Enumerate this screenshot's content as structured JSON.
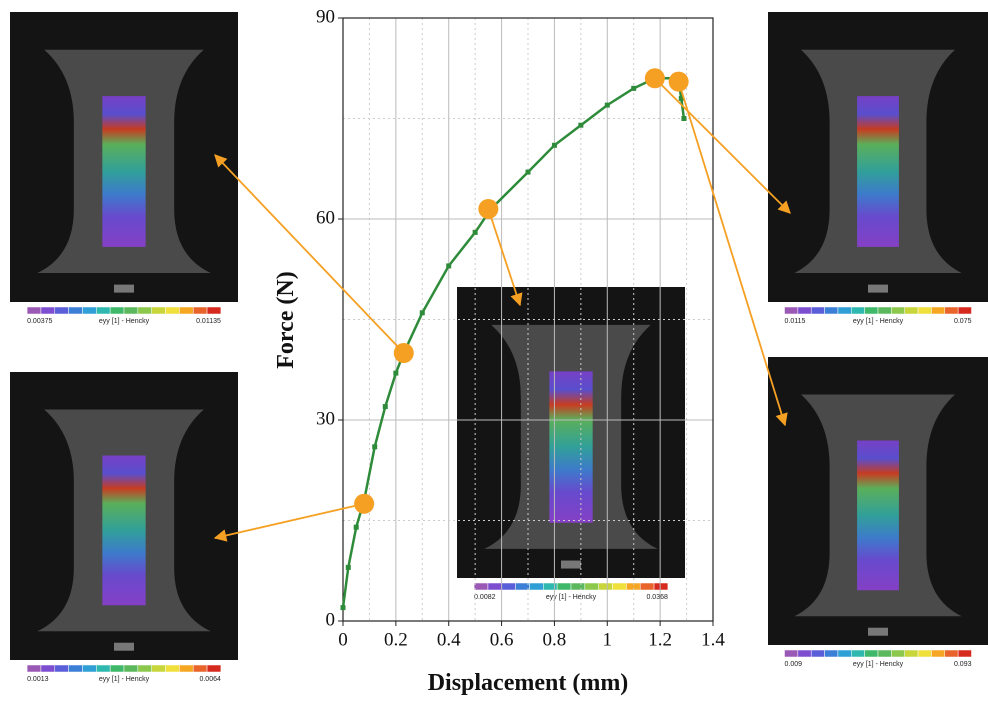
{
  "chart_data": {
    "type": "line",
    "xlabel": "Displacement (mm)",
    "ylabel": "Force (N)",
    "x": [
      0,
      0.02,
      0.05,
      0.08,
      0.12,
      0.16,
      0.2,
      0.23,
      0.3,
      0.4,
      0.5,
      0.56,
      0.7,
      0.8,
      0.9,
      1.0,
      1.1,
      1.18,
      1.25,
      1.27,
      1.28,
      1.29
    ],
    "series": [
      {
        "color": "#2e8b3a",
        "values": [
          2,
          8,
          14,
          18,
          26,
          32,
          37,
          40,
          46,
          53,
          58,
          61.5,
          67,
          71,
          74,
          77,
          79.5,
          81,
          81,
          80.5,
          78,
          75
        ]
      }
    ],
    "markers": {
      "color": "#f5a023",
      "x": [
        0.08,
        0.23,
        0.55,
        1.18,
        1.27
      ],
      "values": [
        17.5,
        40,
        61.5,
        81,
        80.5
      ]
    },
    "xlim": [
      0,
      1.4
    ],
    "xticks": [
      0,
      0.2,
      0.4,
      0.6,
      0.8,
      1,
      1.2,
      1.4
    ],
    "ylim": [
      0,
      90
    ],
    "yticks": [
      0,
      30,
      60,
      90
    ],
    "grid": true,
    "insets": [
      {
        "min": "0.00375",
        "label": "eyy [1] - Hencky",
        "max": "0.01135"
      },
      {
        "min": "0.0013",
        "label": "eyy [1] - Hencky",
        "max": "0.0064"
      },
      {
        "min": "0.0082",
        "label": "eyy [1] - Hencky",
        "max": "0.0368"
      },
      {
        "min": "0.0115",
        "label": "eyy [1] - Hencky",
        "max": "0.075"
      },
      {
        "min": "0.009",
        "label": "eyy [1] - Hencky",
        "max": "0.093"
      }
    ]
  }
}
